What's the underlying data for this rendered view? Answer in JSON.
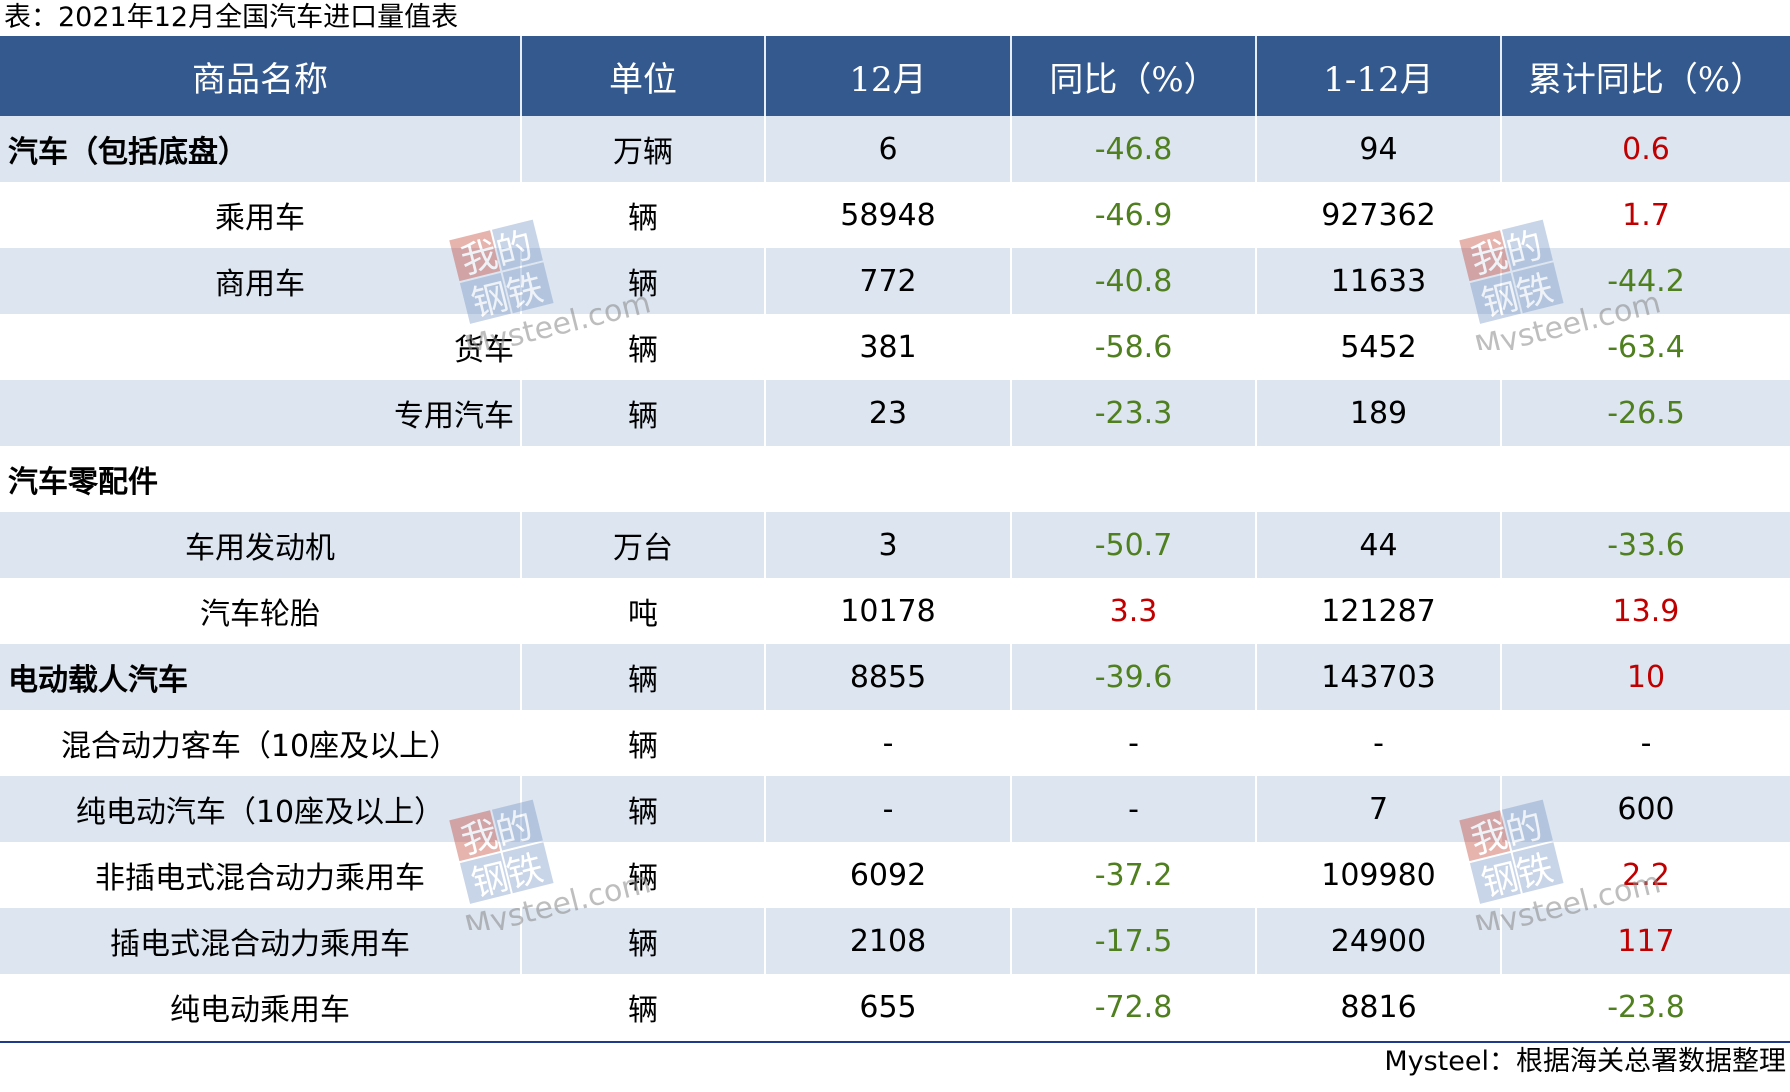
{
  "caption": "表：2021年12月全国汽车进口量值表",
  "headers": [
    "商品名称",
    "单位",
    "12月",
    "同比（%）",
    "1-12月",
    "累计同比（%）"
  ],
  "rows": [
    {
      "name": "汽车（包括底盘）",
      "unit": "万辆",
      "dec": "6",
      "yoy": "-46.8",
      "ytd": "94",
      "ytd_yoy": "0.6"
    },
    {
      "name": "乘用车",
      "unit": "辆",
      "dec": "58948",
      "yoy": "-46.9",
      "ytd": "927362",
      "ytd_yoy": "1.7"
    },
    {
      "name": "商用车",
      "unit": "辆",
      "dec": "772",
      "yoy": "-40.8",
      "ytd": "11633",
      "ytd_yoy": "-44.2"
    },
    {
      "name": "货车",
      "unit": "辆",
      "dec": "381",
      "yoy": "-58.6",
      "ytd": "5452",
      "ytd_yoy": "-63.4"
    },
    {
      "name": "专用汽车",
      "unit": "辆",
      "dec": "23",
      "yoy": "-23.3",
      "ytd": "189",
      "ytd_yoy": "-26.5"
    },
    {
      "name": "汽车零配件",
      "unit": "",
      "dec": "",
      "yoy": "",
      "ytd": "",
      "ytd_yoy": ""
    },
    {
      "name": "车用发动机",
      "unit": "万台",
      "dec": "3",
      "yoy": "-50.7",
      "ytd": "44",
      "ytd_yoy": "-33.6"
    },
    {
      "name": "汽车轮胎",
      "unit": "吨",
      "dec": "10178",
      "yoy": "3.3",
      "ytd": "121287",
      "ytd_yoy": "13.9"
    },
    {
      "name": "电动载人汽车",
      "unit": "辆",
      "dec": "8855",
      "yoy": "-39.6",
      "ytd": "143703",
      "ytd_yoy": "10"
    },
    {
      "name": "混合动力客车（10座及以上）",
      "unit": "辆",
      "dec": "-",
      "yoy": "-",
      "ytd": "-",
      "ytd_yoy": "-"
    },
    {
      "name": "纯电动汽车（10座及以上）",
      "unit": "辆",
      "dec": "-",
      "yoy": "-",
      "ytd": "7",
      "ytd_yoy": "600"
    },
    {
      "name": "非插电式混合动力乘用车",
      "unit": "辆",
      "dec": "6092",
      "yoy": "-37.2",
      "ytd": "109980",
      "ytd_yoy": "2.2"
    },
    {
      "name": "插电式混合动力乘用车",
      "unit": "辆",
      "dec": "2108",
      "yoy": "-17.5",
      "ytd": "24900",
      "ytd_yoy": "117"
    },
    {
      "name": "纯电动乘用车",
      "unit": "辆",
      "dec": "655",
      "yoy": "-72.8",
      "ytd": "8816",
      "ytd_yoy": "-23.8"
    }
  ],
  "source": "Mysteel：根据海关总署数据整理",
  "watermark": {
    "line1": "我的",
    "line2": "钢铁",
    "line3": "Mysteel.com"
  },
  "colors": {
    "header_bg": "#34598f",
    "band_bg": "#dce5f0",
    "positive": "#c00000",
    "negative": "#4f7f1f",
    "rule": "#1f3a8a"
  }
}
